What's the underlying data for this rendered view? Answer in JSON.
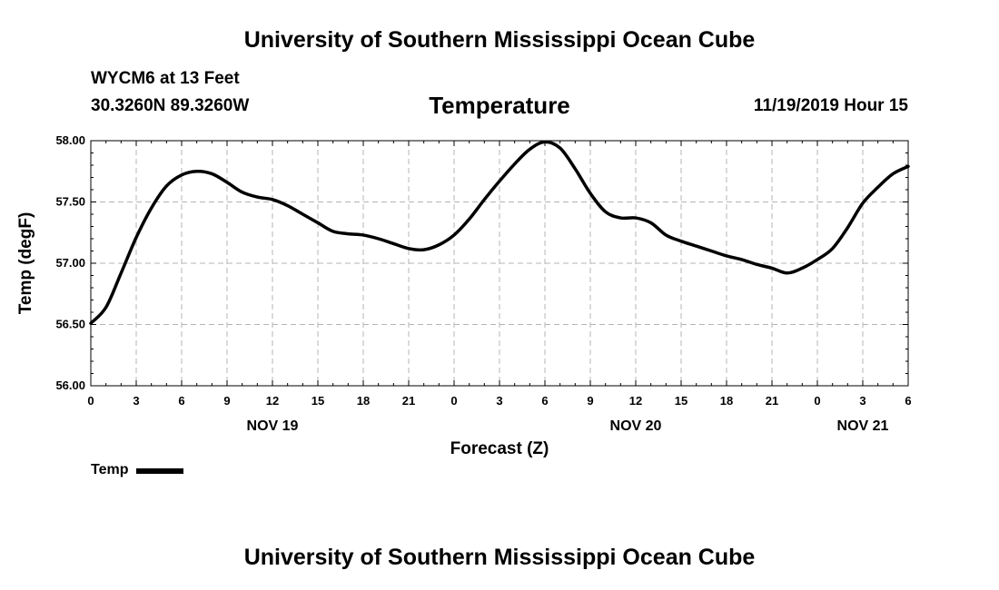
{
  "header": {
    "top_title": "University of Southern Mississippi Ocean Cube",
    "station": "WYCM6 at 13 Feet",
    "coordinates": "30.3260N 89.3260W",
    "datetime": "11/19/2019 Hour 15",
    "bottom_title": "University of Southern Mississippi Ocean Cube"
  },
  "chart_data": {
    "type": "line",
    "title": "Temperature",
    "xlabel": "Forecast (Z)",
    "ylabel": "Temp (degF)",
    "ylim": [
      56.0,
      58.0
    ],
    "y_ticks": [
      "56.00",
      "56.50",
      "57.00",
      "57.50",
      "58.00"
    ],
    "xlim_hours": [
      0,
      54
    ],
    "x_tick_labels": [
      "0",
      "3",
      "6",
      "9",
      "12",
      "15",
      "18",
      "21",
      "0",
      "3",
      "6",
      "9",
      "12",
      "15",
      "18",
      "21",
      "0",
      "3",
      "6"
    ],
    "day_labels": [
      {
        "label": "NOV 19",
        "hour": 12
      },
      {
        "label": "NOV 20",
        "hour": 36
      },
      {
        "label": "NOV 21",
        "hour": 51
      }
    ],
    "grid": true,
    "legend_position": "bottom-left",
    "series": [
      {
        "name": "Temp",
        "color": "#000000",
        "x_hours": [
          0,
          1,
          2,
          3,
          4,
          5,
          6,
          7,
          8,
          9,
          10,
          11,
          12,
          13,
          14,
          15,
          16,
          17,
          18,
          19,
          20,
          21,
          22,
          23,
          24,
          25,
          26,
          27,
          28,
          29,
          30,
          31,
          32,
          33,
          34,
          35,
          36,
          37,
          38,
          39,
          40,
          41,
          42,
          43,
          44,
          45,
          46,
          47,
          48,
          49,
          50,
          51,
          52,
          53,
          54
        ],
        "values": [
          56.51,
          56.64,
          56.92,
          57.21,
          57.45,
          57.63,
          57.72,
          57.75,
          57.73,
          57.66,
          57.58,
          57.54,
          57.52,
          57.47,
          57.4,
          57.33,
          57.26,
          57.24,
          57.23,
          57.2,
          57.16,
          57.12,
          57.11,
          57.15,
          57.23,
          57.36,
          57.52,
          57.67,
          57.81,
          57.93,
          57.99,
          57.94,
          57.77,
          57.57,
          57.42,
          57.37,
          57.37,
          57.33,
          57.23,
          57.18,
          57.14,
          57.1,
          57.06,
          57.03,
          56.99,
          56.96,
          56.92,
          56.96,
          57.03,
          57.12,
          57.29,
          57.49,
          57.62,
          57.73,
          57.79
        ]
      }
    ]
  }
}
